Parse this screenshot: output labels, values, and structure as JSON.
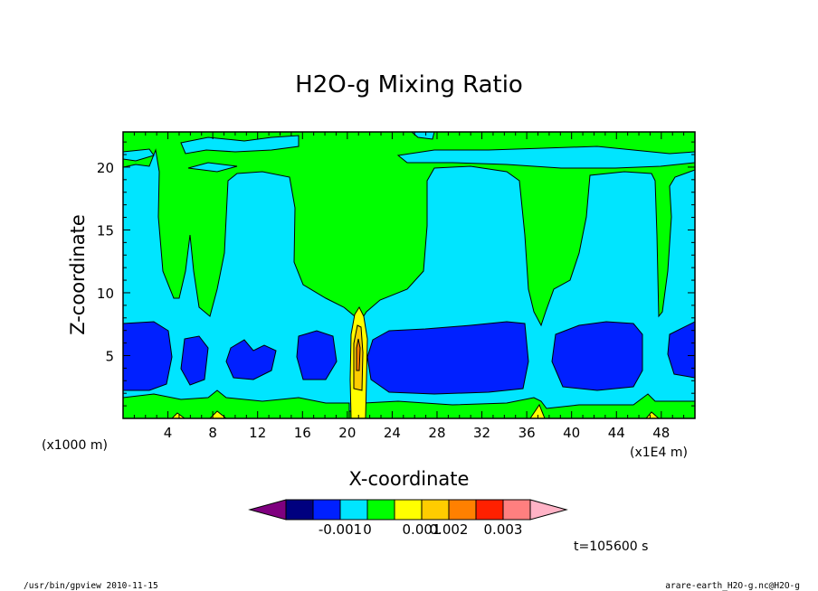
{
  "chart_data": {
    "type": "contour",
    "title": "H2O-g Mixing Ratio",
    "xlabel": "X-coordinate",
    "ylabel": "Z-coordinate",
    "x_unit_left": "(x1000 m)",
    "x_unit_right": "(x1E4 m)",
    "xlim": [
      0,
      51
    ],
    "ylim": [
      0,
      22.8
    ],
    "x_ticks": [
      4,
      8,
      12,
      16,
      20,
      24,
      28,
      32,
      36,
      40,
      44,
      48
    ],
    "x_tick_labels": [
      "4",
      "8",
      "12",
      "16",
      "20",
      "24",
      "28",
      "32",
      "36",
      "40",
      "44",
      "48"
    ],
    "y_ticks": [
      5,
      10,
      15,
      20
    ],
    "y_tick_labels": [
      "5",
      "10",
      "15",
      "20"
    ],
    "colorbar": {
      "colors": [
        "#7f007f",
        "#00007f",
        "#0020ff",
        "#00e5ff",
        "#00ff00",
        "#ffff00",
        "#ffcc00",
        "#ff8000",
        "#ff2000",
        "#ff7f7f",
        "#ffb3c6"
      ],
      "tick_labels": [
        "-0.001",
        "0",
        "0.001",
        "0.002",
        "0.003"
      ]
    },
    "time_label": "t=105600 s",
    "colors": {
      "background_level": "#00ff00",
      "cloud_level": "#00e5ff",
      "core_level": "#0020ff",
      "warm_levels": [
        "#ffff00",
        "#ffcc00",
        "#ff8000"
      ]
    }
  },
  "footer": {
    "left": "/usr/bin/gpview   2010-11-15",
    "right": "arare-earth_H2O-g.nc@H2O-g"
  }
}
